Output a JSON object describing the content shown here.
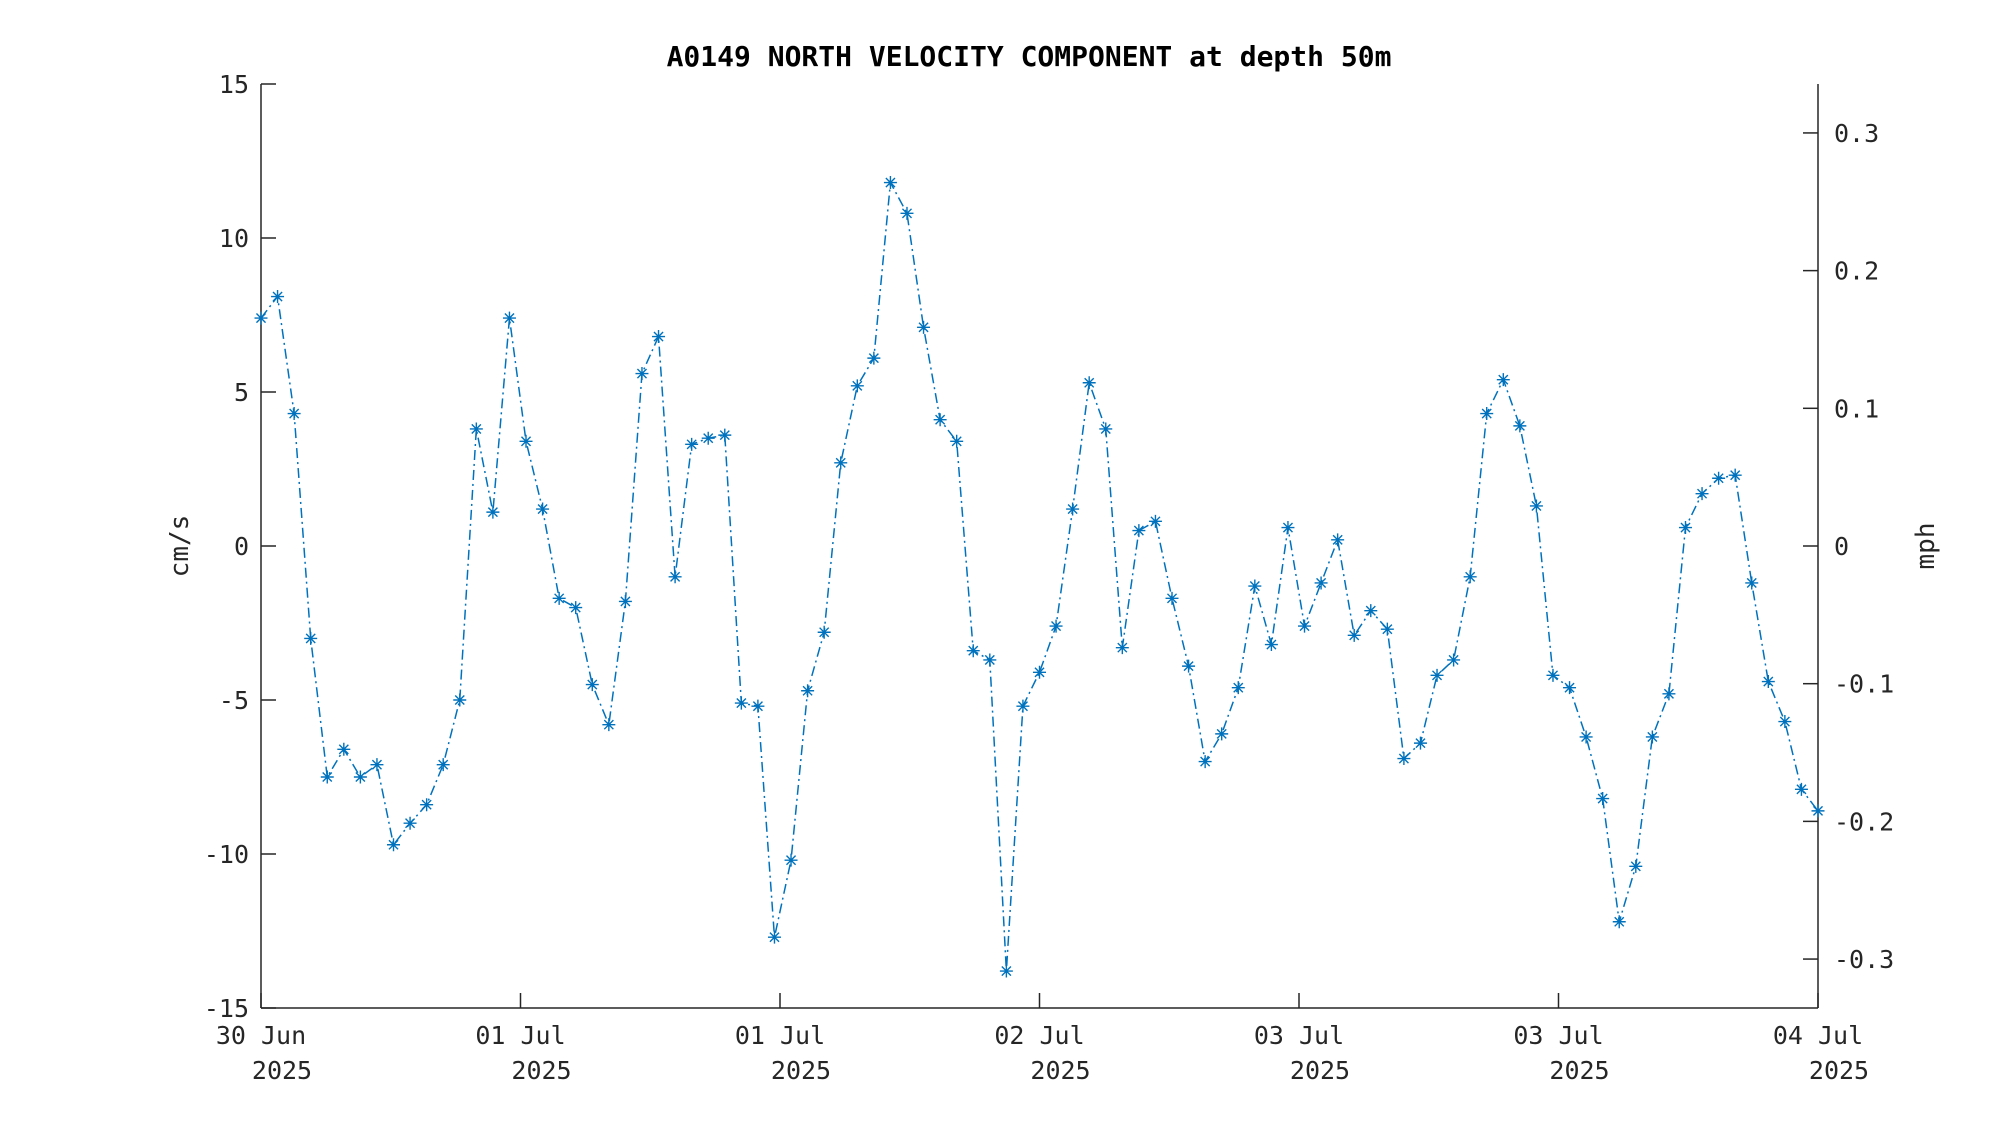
{
  "chart_data": {
    "type": "line",
    "title": "A0149 NORTH VELOCITY COMPONENT at depth 50m",
    "ylabel": "cm/s",
    "ylabel_right": "mph",
    "ylim": [
      -15,
      15
    ],
    "yticks": [
      "-15",
      "-10",
      "-5",
      "0",
      "5",
      "10",
      "15"
    ],
    "yticks_right": [
      "-0.3",
      "-0.2",
      "-0.1",
      "0",
      "0.1",
      "0.2",
      "0.3"
    ],
    "xticks": [
      {
        "day": "30 Jun",
        "year": "2025"
      },
      {
        "day": "01 Jul",
        "year": "2025"
      },
      {
        "day": "01 Jul",
        "year": "2025"
      },
      {
        "day": "02 Jul",
        "year": "2025"
      },
      {
        "day": "03 Jul",
        "year": "2025"
      },
      {
        "day": "03 Jul",
        "year": "2025"
      },
      {
        "day": "04 Jul",
        "year": "2025"
      }
    ],
    "marker": "asterisk",
    "line_style": "dash-dot",
    "grid": false,
    "series": [
      {
        "color": "#0072BD",
        "values": [
          7.4,
          8.1,
          4.3,
          -3.0,
          -7.5,
          -6.6,
          -7.5,
          -7.1,
          -9.7,
          -9.0,
          -8.4,
          -7.1,
          -5.0,
          3.8,
          1.1,
          7.4,
          3.4,
          1.2,
          -1.7,
          -2.0,
          -4.5,
          -5.8,
          -1.8,
          5.6,
          6.8,
          -1.0,
          3.3,
          3.5,
          3.6,
          -5.1,
          -5.2,
          -12.7,
          -10.2,
          -4.7,
          -2.8,
          2.7,
          5.2,
          6.1,
          11.8,
          10.8,
          7.1,
          4.1,
          3.4,
          -3.4,
          -3.7,
          -13.8,
          -5.2,
          -4.1,
          -2.6,
          1.2,
          5.3,
          3.8,
          -3.3,
          0.5,
          0.8,
          -1.7,
          -3.9,
          -7.0,
          -6.1,
          -4.6,
          -1.3,
          -3.2,
          0.6,
          -2.6,
          -1.2,
          0.2,
          -2.9,
          -2.1,
          -2.7,
          -6.9,
          -6.4,
          -4.2,
          -3.7,
          -1.0,
          4.3,
          5.4,
          3.9,
          1.3,
          -4.2,
          -4.6,
          -6.2,
          -8.2,
          -12.2,
          -10.4,
          -6.2,
          -4.8,
          0.6,
          1.7,
          2.2,
          2.3,
          -1.2,
          -4.4,
          -5.7,
          -7.9,
          -8.6
        ]
      }
    ]
  }
}
